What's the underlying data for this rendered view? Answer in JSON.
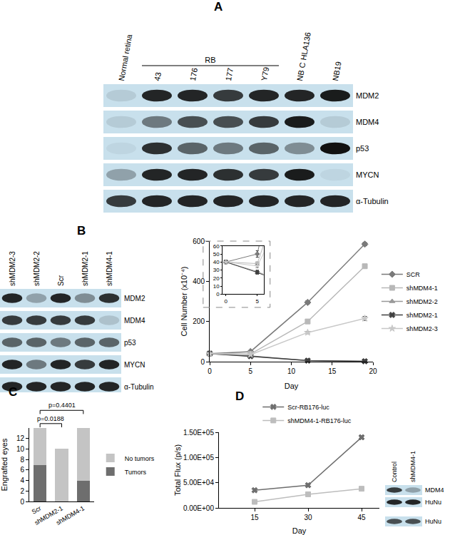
{
  "panel_labels": [
    "A",
    "B",
    "C",
    "D"
  ],
  "blots": {
    "A": {
      "lanes": [
        "Normal retina",
        "43",
        "176",
        "177",
        "Y79",
        "NB C HLA136",
        "NB19"
      ],
      "group": {
        "label": "RB",
        "lanes": [
          "43",
          "176",
          "177",
          "Y79"
        ]
      },
      "panels": [
        {
          "rows": [
            {
              "name": "MDM2",
              "bands": [
                0.1,
                0.9,
                0.9,
                0.8,
                0.9,
                0.9,
                0.95
              ]
            },
            {
              "name": "MDM4",
              "bands": [
                0.1,
                0.5,
                0.7,
                0.7,
                0.8,
                0.95,
                0.1
              ]
            },
            {
              "name": "p53",
              "bands": [
                0.05,
                0.85,
                0.6,
                0.5,
                0.6,
                0.4,
                1.0
              ]
            },
            {
              "name": "MYCN",
              "bands": [
                0.3,
                0.9,
                0.9,
                0.85,
                0.8,
                0.95,
                0.05
              ]
            },
            {
              "name": "α-Tubulin",
              "bands": [
                0.8,
                0.9,
                0.9,
                0.9,
                0.9,
                0.9,
                0.9
              ]
            }
          ]
        }
      ]
    },
    "B": {
      "lanes": [
        "shMDM2-3",
        "shMDM2-2",
        "Scr",
        "shMDM2-1",
        "shMDM4-1"
      ],
      "panels": [
        {
          "rows": [
            {
              "name": "MDM2",
              "bands": [
                0.9,
                0.3,
                0.9,
                0.4,
                0.85
              ]
            },
            {
              "name": "MDM4",
              "bands": [
                0.8,
                0.8,
                0.8,
                0.8,
                0.15
              ]
            },
            {
              "name": "p53",
              "bands": [
                0.6,
                0.6,
                0.5,
                0.6,
                0.6
              ]
            },
            {
              "name": "MYCN",
              "bands": [
                0.9,
                0.5,
                0.9,
                0.8,
                0.9
              ]
            },
            {
              "name": "α-Tubulin",
              "bands": [
                0.9,
                0.9,
                0.9,
                0.9,
                0.9
              ]
            }
          ]
        }
      ]
    },
    "D": {
      "lanes": [
        "Control",
        "shMDM4-1"
      ],
      "panels": [
        {
          "rows": [
            {
              "name": "MDM4",
              "bands": [
                0.8,
                0.3
              ]
            },
            {
              "name": "HuNu",
              "bands": [
                0.9,
                0.9
              ]
            }
          ]
        },
        {
          "rows": [
            {
              "name": "HuNu",
              "bands": [
                0.7,
                0.7
              ]
            }
          ]
        }
      ]
    }
  },
  "chart_data": [
    {
      "type": "line",
      "x_label": "Day",
      "y_label": "Cell Number (x10⁻⁴)",
      "x": [
        0,
        5,
        12,
        19
      ],
      "xlim": [
        0,
        20
      ],
      "xticks": [
        0,
        5,
        10,
        15,
        20
      ],
      "ylim": [
        0,
        600
      ],
      "yticks": [
        0,
        200,
        400,
        600
      ],
      "grid": false,
      "legend": "right",
      "series": [
        {
          "name": "SCR",
          "color": "#7a7a7a",
          "marker": "diamond",
          "values": [
            40,
            50,
            295,
            585
          ],
          "errors": [
            2,
            4,
            8,
            8
          ]
        },
        {
          "name": "shMDM4-1",
          "color": "#b8b8b8",
          "marker": "square",
          "values": [
            40,
            38,
            200,
            475
          ],
          "errors": [
            2,
            2,
            8,
            8
          ]
        },
        {
          "name": "shMDM2-2",
          "color": "#999999",
          "marker": "triangle-up",
          "values": [
            40,
            28,
            5,
            2
          ],
          "errors": [
            2,
            2,
            1,
            1
          ]
        },
        {
          "name": "shMDM2-1",
          "color": "#404040",
          "marker": "x",
          "values": [
            40,
            27,
            5,
            2
          ],
          "errors": [
            2,
            2,
            1,
            1
          ]
        },
        {
          "name": "shMDM2-3",
          "color": "#c8c8c8",
          "marker": "star",
          "values": [
            40,
            35,
            145,
            215
          ],
          "errors": [
            2,
            2,
            6,
            10
          ]
        }
      ],
      "inset": {
        "xlim": [
          -0.5,
          6
        ],
        "xticks": [
          0,
          5
        ],
        "ylim": [
          0,
          60
        ],
        "yticks": [
          0,
          10,
          20,
          30,
          40,
          50,
          60
        ]
      }
    },
    {
      "type": "bar",
      "stacked": true,
      "y_label": "Engrafted eyes",
      "categories": [
        "Scr",
        "shMDM2-1",
        "shMDM4-1"
      ],
      "ylim": [
        0,
        14
      ],
      "yticks": [
        0,
        2,
        4,
        6,
        8,
        10,
        12
      ],
      "grid": false,
      "legend": "right",
      "series": [
        {
          "name": "Tumors",
          "color": "#6e6e6e",
          "values": [
            7,
            0,
            4
          ]
        },
        {
          "name": "No tumors",
          "color": "#c4c4c4",
          "values": [
            7,
            10,
            10
          ]
        }
      ],
      "annotations": [
        {
          "text": "p=0.0188",
          "from": "Scr",
          "to": "shMDM2-1"
        },
        {
          "text": "p=0.4401",
          "from": "Scr",
          "to": "shMDM4-1"
        }
      ]
    },
    {
      "type": "line",
      "x_label": "Day",
      "y_label": "Total Flux (p/s)",
      "x": [
        15,
        30,
        45
      ],
      "xlim": [
        5,
        50
      ],
      "xticks": [
        15,
        30,
        45
      ],
      "ylim": [
        0,
        150000
      ],
      "yticks": [
        {
          "value": 0,
          "label": "0.00E+00"
        },
        {
          "value": 50000,
          "label": "5.00E+04"
        },
        {
          "value": 100000,
          "label": "1.00E+05"
        },
        {
          "value": 150000,
          "label": "1.50E+05"
        }
      ],
      "grid": false,
      "legend": "top",
      "series": [
        {
          "name": "Scr-RB176-luc",
          "color": "#6e6e6e",
          "marker": "x",
          "values": [
            35000,
            45000,
            140000
          ]
        },
        {
          "name": "shMDM4-1-RB176-luc",
          "color": "#bdbdbd",
          "marker": "square",
          "values": [
            12000,
            27000,
            38000
          ]
        }
      ]
    }
  ]
}
